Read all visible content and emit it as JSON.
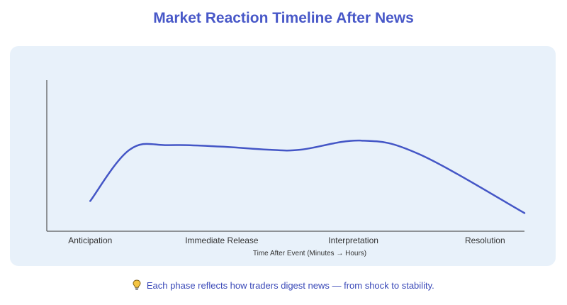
{
  "title": "Market Reaction Timeline After News",
  "footer_icon": "lightbulb-icon",
  "footer_text": "Each phase reflects how traders digest news — from shock to stability.",
  "colors": {
    "title": "#4858c8",
    "line": "#4456c6",
    "panel": "#e8f1fa",
    "axis": "#333333"
  },
  "chart_data": {
    "type": "line",
    "title": "Market Reaction Timeline After News",
    "xlabel": "Time After Event (Minutes → Hours)",
    "ylabel": "",
    "categories": [
      "Anticipation",
      "Immediate Release",
      "Interpretation",
      "Resolution"
    ],
    "grid": false,
    "legend": "none",
    "series": [
      {
        "values": [
          0.2,
          0.54,
          0.57,
          0.56,
          0.54,
          0.54,
          0.6,
          0.51,
          0.12
        ]
      }
    ],
    "x": [
      0,
      0.3,
      0.6,
      1.0,
      1.35,
      1.6,
      2.06,
      2.5,
      3.3
    ],
    "xlim": [
      -0.33,
      3.3
    ],
    "ylim": [
      0,
      1
    ]
  }
}
